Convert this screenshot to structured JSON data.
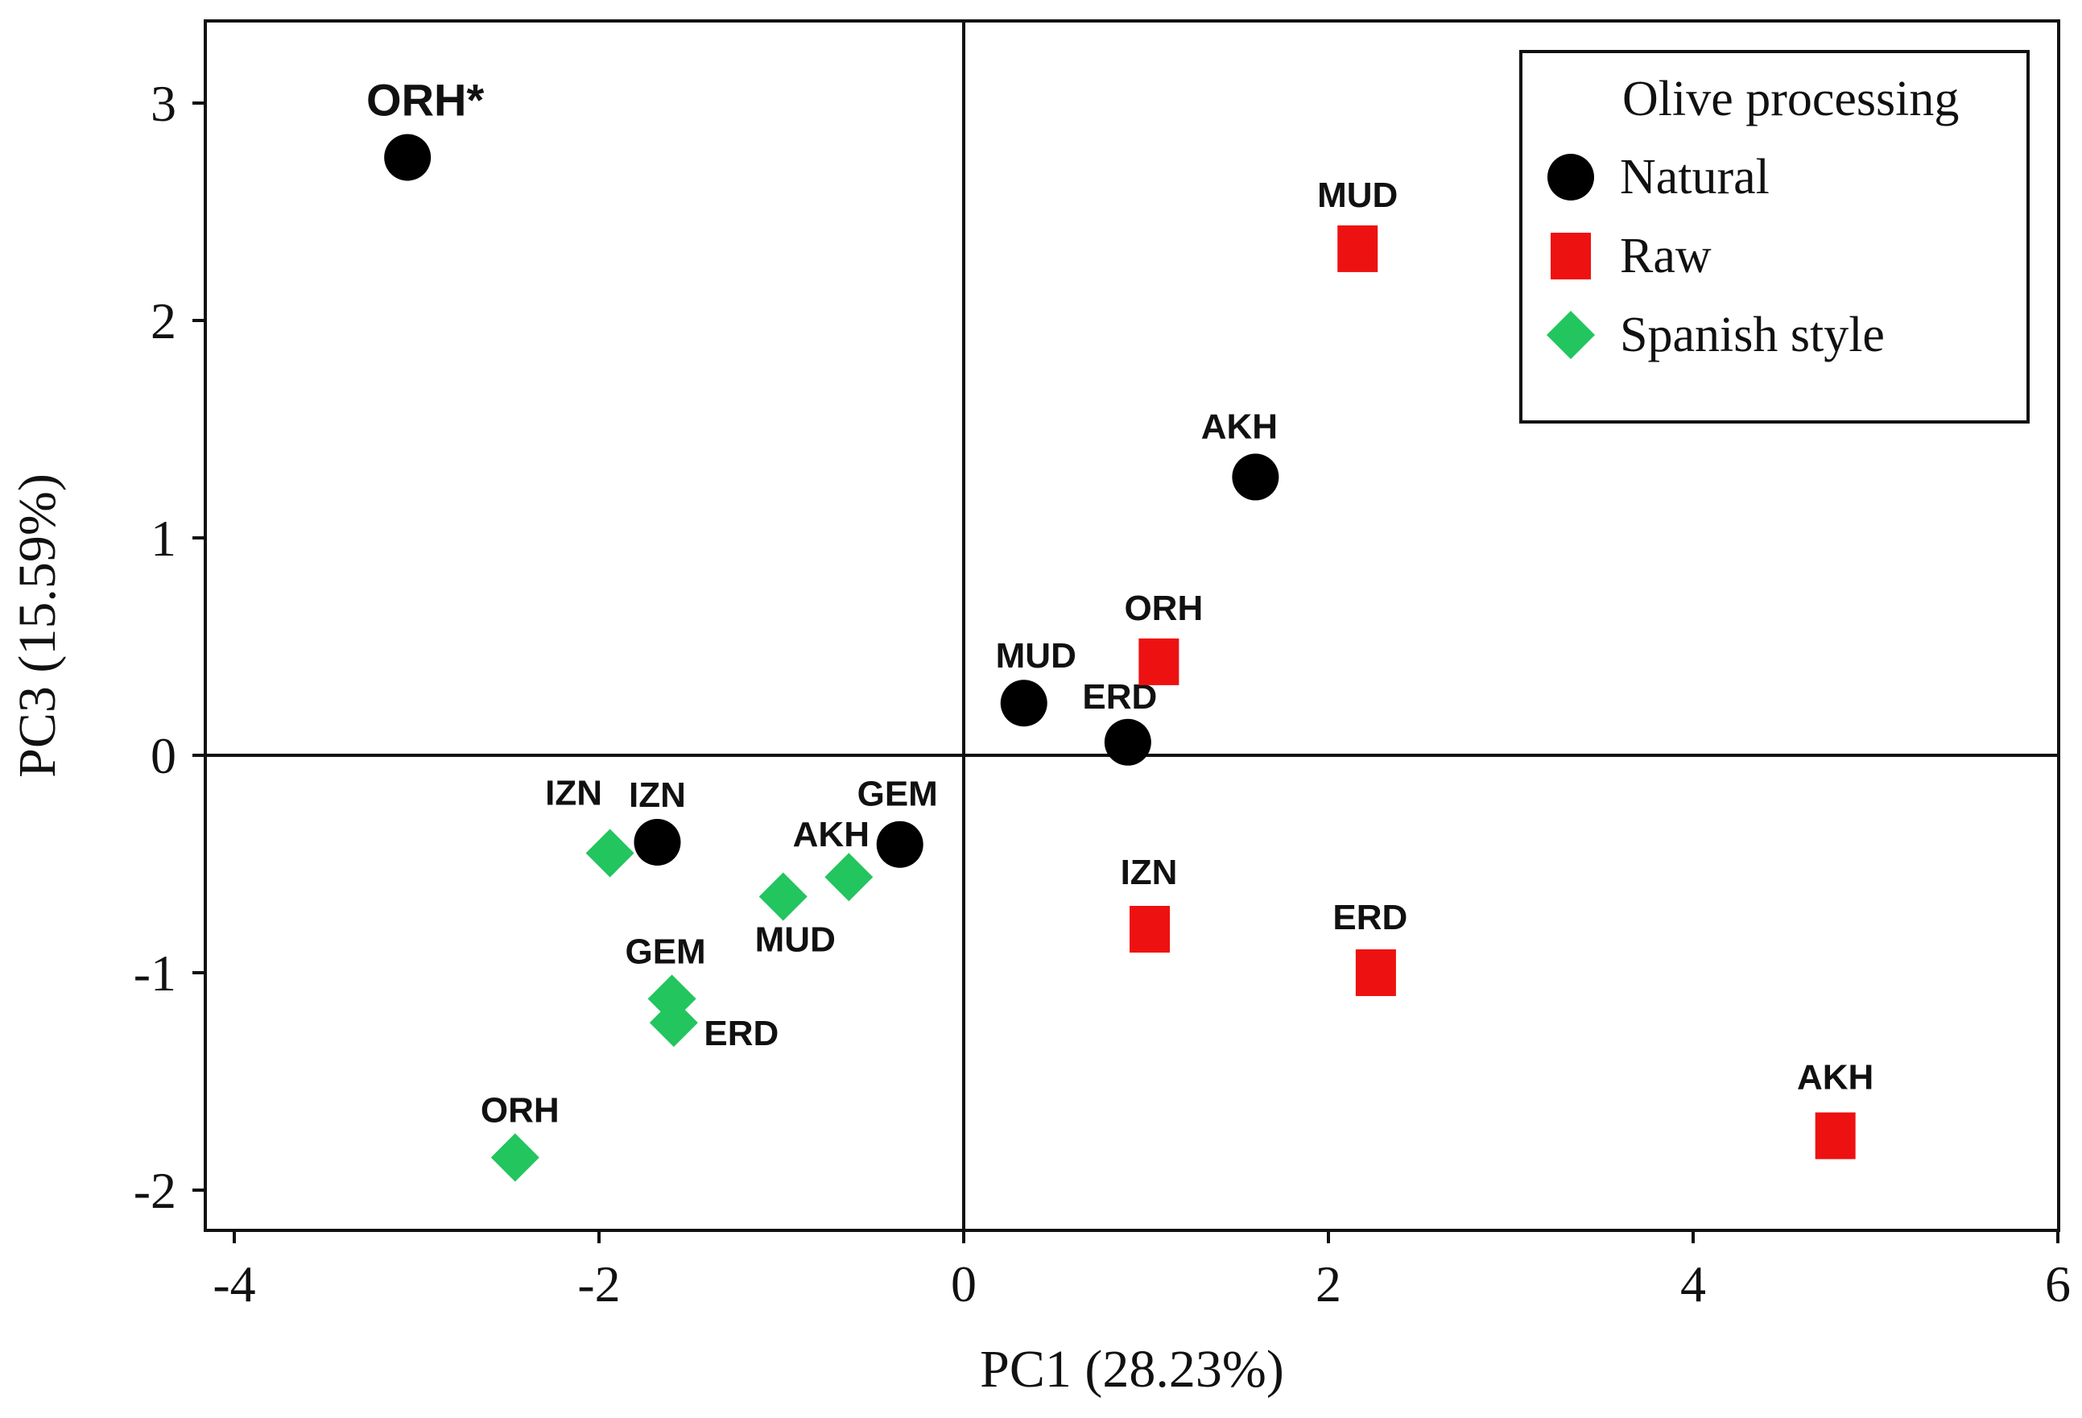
{
  "chart_data": {
    "type": "scatter",
    "title": "",
    "xlabel": "PC1 (28.23%)",
    "ylabel": "PC3 (15.59%)",
    "xlim": [
      -4.2,
      6
    ],
    "ylim": [
      -2.2,
      3.4
    ],
    "xticks": [
      -4,
      -2,
      0,
      2,
      4,
      6
    ],
    "yticks": [
      -2,
      -1,
      0,
      1,
      2,
      3
    ],
    "xtick_labels": [
      "-4",
      "-2",
      "0",
      "2",
      "4",
      "6"
    ],
    "ytick_labels": [
      "-2",
      "-1",
      "0",
      "1",
      "2",
      "3"
    ],
    "grid": false,
    "reference_lines": {
      "x": 0,
      "y": 0
    },
    "legend": {
      "title": "Olive processing",
      "position": "top-right"
    },
    "series": [
      {
        "name": "Natural",
        "marker": "circle",
        "color": "#000000",
        "points": [
          {
            "label": "ORH*",
            "x": -3.05,
            "y": 2.75
          },
          {
            "label": "AKH",
            "x": 1.6,
            "y": 1.28
          },
          {
            "label": "MUD",
            "x": 0.33,
            "y": 0.24
          },
          {
            "label": "ERD",
            "x": 0.9,
            "y": 0.06
          },
          {
            "label": "IZN",
            "x": -1.68,
            "y": -0.4
          },
          {
            "label": "GEM",
            "x": -0.35,
            "y": -0.41
          }
        ]
      },
      {
        "name": "Raw",
        "marker": "square",
        "color": "#ee1111",
        "points": [
          {
            "label": "MUD",
            "x": 2.16,
            "y": 2.33
          },
          {
            "label": "ORH",
            "x": 1.07,
            "y": 0.43
          },
          {
            "label": "IZN",
            "x": 1.02,
            "y": -0.8
          },
          {
            "label": "ERD",
            "x": 2.26,
            "y": -1.0
          },
          {
            "label": "AKH",
            "x": 4.78,
            "y": -1.75
          }
        ]
      },
      {
        "name": "Spanish style",
        "marker": "diamond",
        "color": "#22c55e",
        "points": [
          {
            "label": "IZN",
            "x": -1.94,
            "y": -0.45
          },
          {
            "label": "AKH",
            "x": -0.63,
            "y": -0.56
          },
          {
            "label": "MUD",
            "x": -0.99,
            "y": -0.65
          },
          {
            "label": "GEM",
            "x": -1.6,
            "y": -1.12
          },
          {
            "label": "ERD",
            "x": -1.59,
            "y": -1.23
          },
          {
            "label": "ORH",
            "x": -2.46,
            "y": -1.85
          }
        ]
      }
    ]
  }
}
